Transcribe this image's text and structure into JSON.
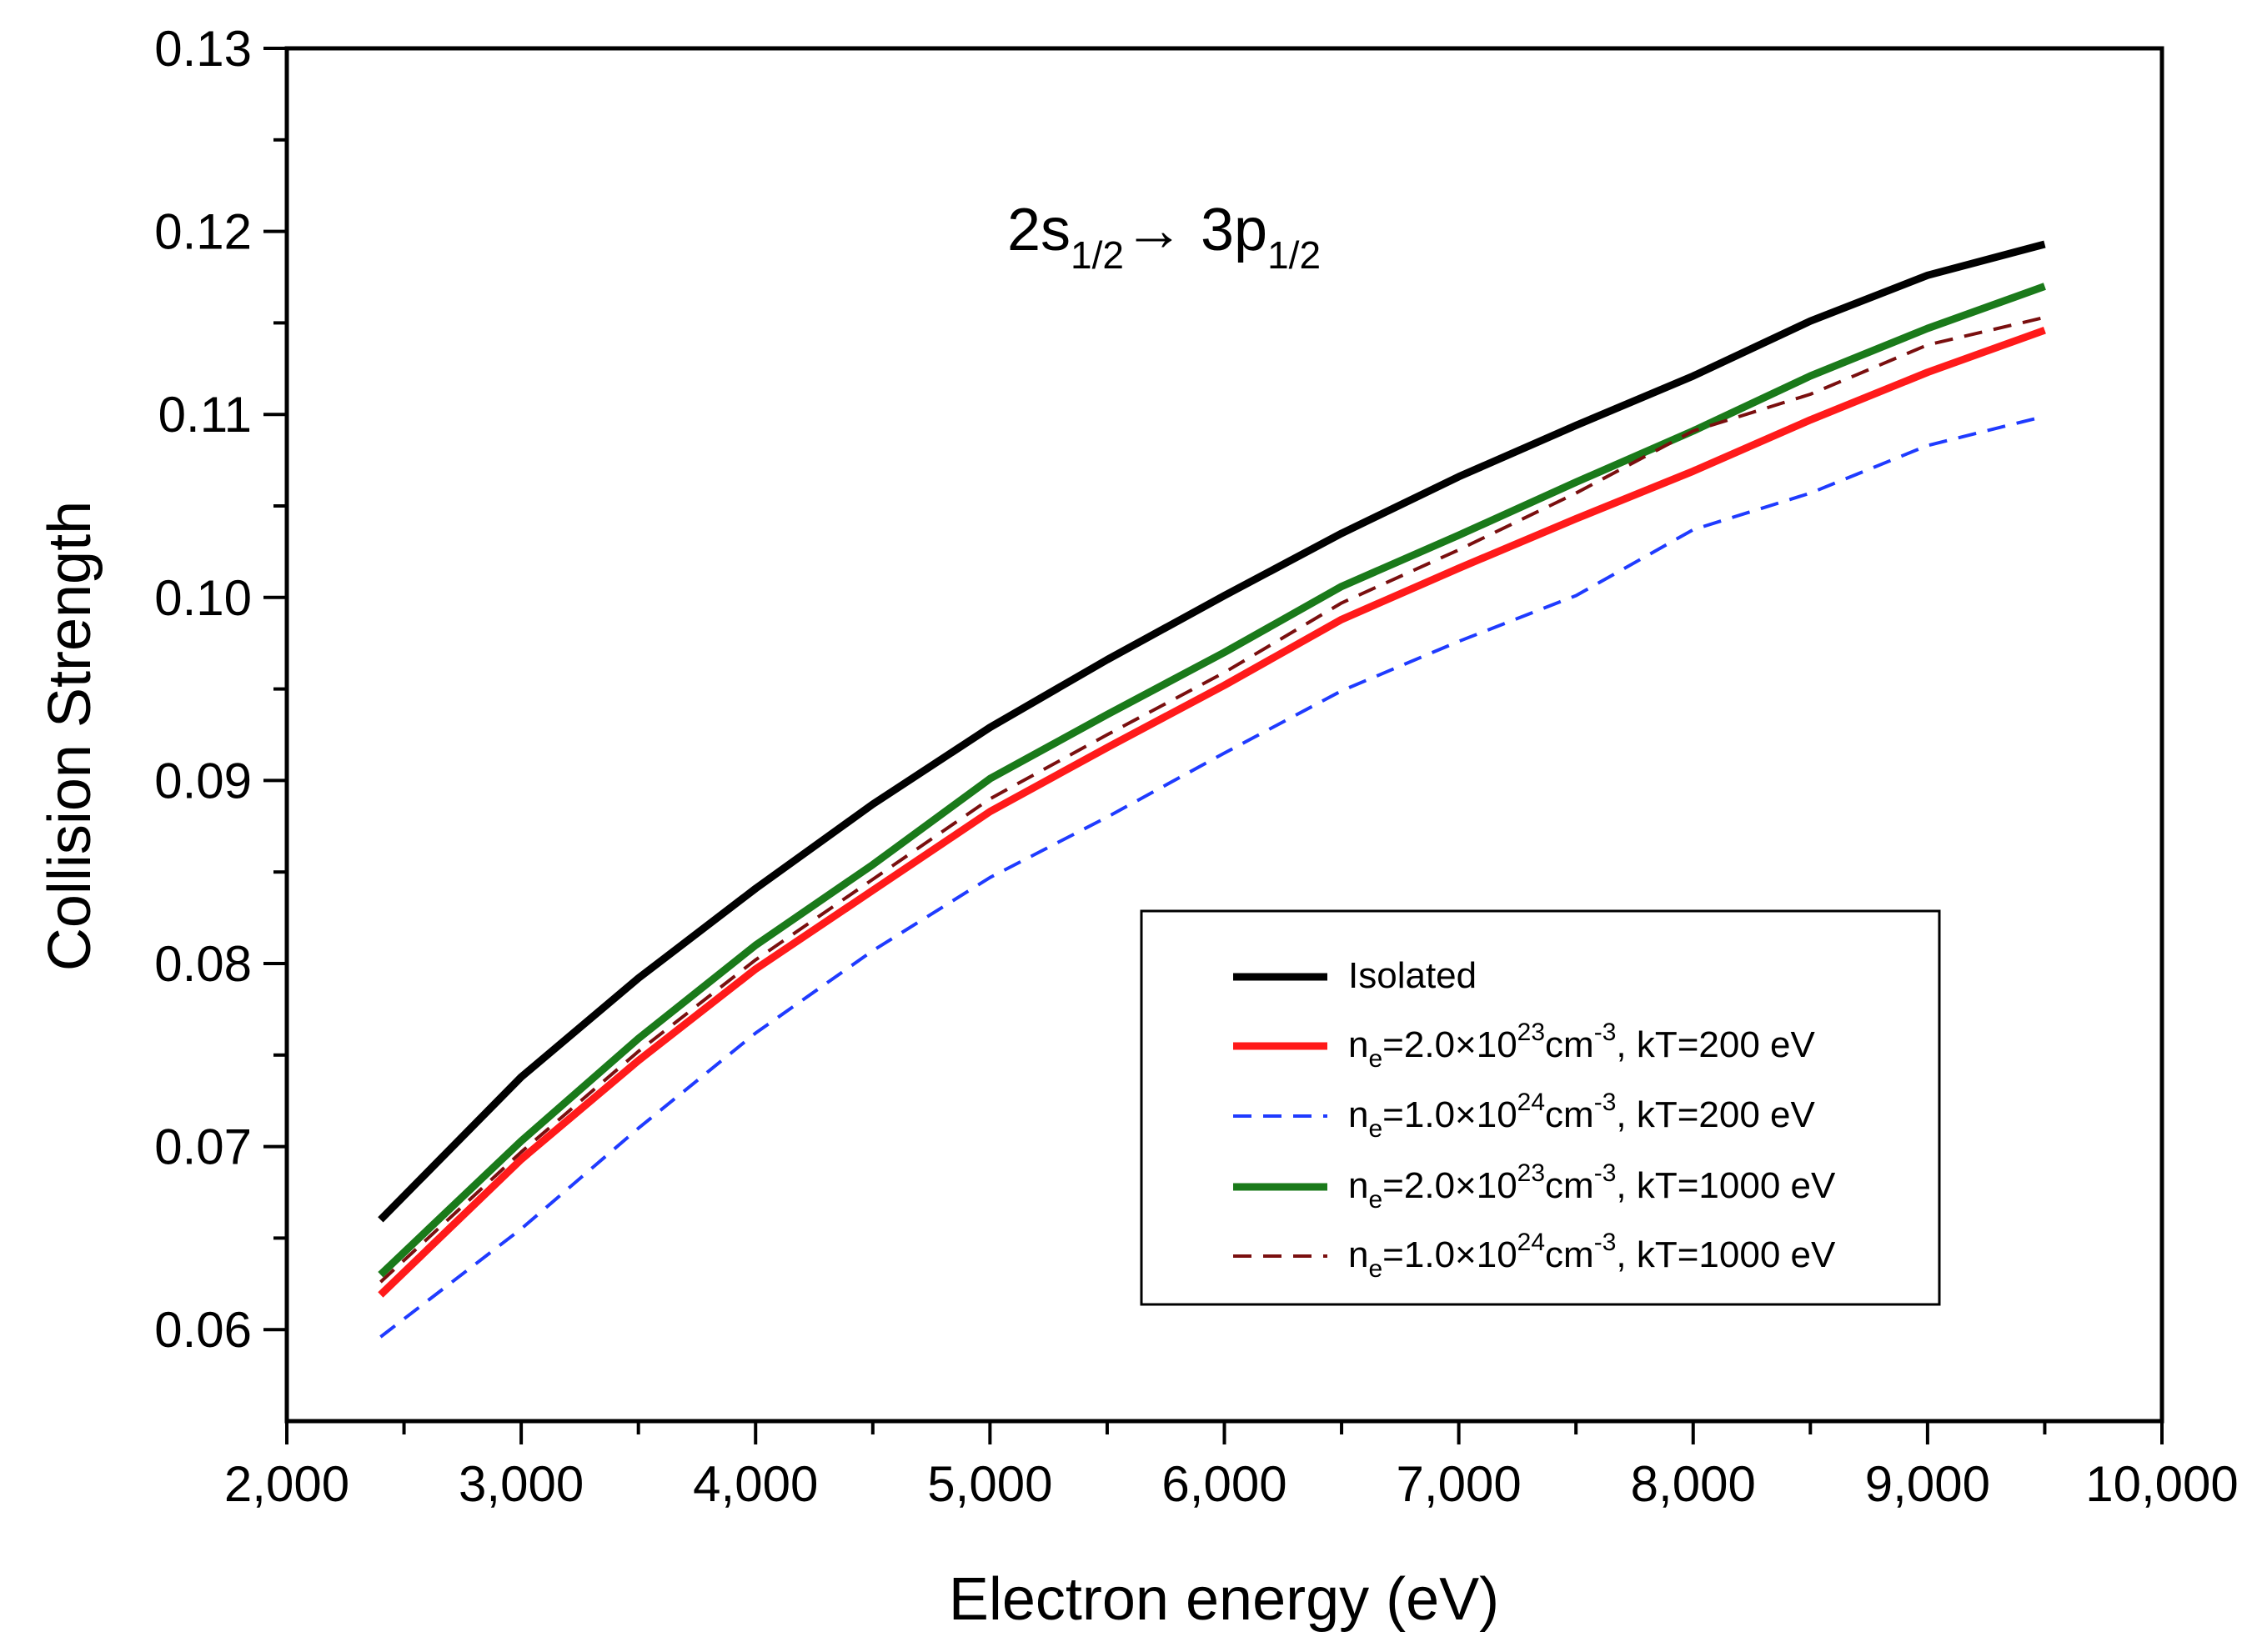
{
  "chart_data": {
    "type": "line",
    "title": "",
    "xlabel": "Electron energy (eV)",
    "ylabel": "Collision Strength",
    "xlim": [
      2000,
      10000
    ],
    "ylim": [
      0.055,
      0.13
    ],
    "x_ticks": [
      2000,
      3000,
      4000,
      5000,
      6000,
      7000,
      8000,
      9000,
      10000
    ],
    "x_tick_labels": [
      "2,000",
      "3,000",
      "4,000",
      "5,000",
      "6,000",
      "7,000",
      "8,000",
      "9,000",
      "10,000"
    ],
    "y_ticks": [
      0.06,
      0.07,
      0.08,
      0.09,
      0.1,
      0.11,
      0.12,
      0.13
    ],
    "y_tick_labels": [
      "0.06",
      "0.07",
      "0.08",
      "0.09",
      "0.10",
      "0.11",
      "0.12",
      "0.13"
    ],
    "grid": false,
    "legend_position": "lower-right",
    "annotation": {
      "part1": "2s",
      "sub1": "1/2",
      "arrow": "→",
      "part2": " 3p",
      "sub2": "1/2"
    },
    "series": [
      {
        "name": "Isolated",
        "label_parts": {
          "main": "Isolated"
        },
        "color": "#000000",
        "style": "solid",
        "x": [
          2400,
          3000,
          3500,
          4000,
          4500,
          5000,
          5500,
          6000,
          6500,
          7000,
          7500,
          8000,
          8500,
          9000,
          9500
        ],
        "y": [
          0.066,
          0.0738,
          0.0792,
          0.0841,
          0.0887,
          0.0929,
          0.0966,
          0.1001,
          0.1035,
          0.1066,
          0.1094,
          0.1121,
          0.1151,
          0.1176,
          0.1193
        ]
      },
      {
        "name": "ne=2.0×1023cm-3, kT=200 eV",
        "label_parts": {
          "n": "n",
          "e": "e",
          "mid": "=2.0×10",
          "exp": "23",
          "unit": "cm",
          "unitexp": "-3",
          "tail": ", kT=200 eV"
        },
        "color": "#ff1a1a",
        "style": "solid",
        "x": [
          2400,
          3000,
          3500,
          4000,
          4500,
          5000,
          5500,
          6000,
          6500,
          7000,
          7500,
          8000,
          8500,
          9000,
          9500
        ],
        "y": [
          0.0619,
          0.0693,
          0.0747,
          0.0797,
          0.084,
          0.0883,
          0.0918,
          0.0952,
          0.0988,
          0.1016,
          0.1043,
          0.1069,
          0.1097,
          0.1123,
          0.1146
        ]
      },
      {
        "name": "ne=1.0×1024cm-3, kT=200 eV",
        "label_parts": {
          "n": "n",
          "e": "e",
          "mid": "=1.0×10",
          "exp": "24",
          "unit": "cm",
          "unitexp": "-3",
          "tail": ", kT=200 eV"
        },
        "color": "#1f3bff",
        "style": "dashed",
        "x": [
          2400,
          3000,
          3500,
          4000,
          4500,
          5000,
          5500,
          6000,
          6500,
          7000,
          7500,
          8000,
          8500,
          9000,
          9500
        ],
        "y": [
          0.0596,
          0.0655,
          0.071,
          0.0762,
          0.0807,
          0.0847,
          0.088,
          0.0915,
          0.0949,
          0.0976,
          0.1001,
          0.1037,
          0.1057,
          0.1083,
          0.1099
        ]
      },
      {
        "name": "ne=2.0×1023cm-3, kT=1000 eV",
        "label_parts": {
          "n": "n",
          "e": "e",
          "mid": "=2.0×10",
          "exp": "23",
          "unit": "cm",
          "unitexp": "-3",
          "tail": ", kT=1000 eV"
        },
        "color": "#1a7a1a",
        "style": "solid",
        "x": [
          2400,
          3000,
          3500,
          4000,
          4500,
          5000,
          5500,
          6000,
          6500,
          7000,
          7500,
          8000,
          8500,
          9000,
          9500
        ],
        "y": [
          0.063,
          0.0703,
          0.0759,
          0.081,
          0.0854,
          0.0901,
          0.0936,
          0.097,
          0.1006,
          0.1034,
          0.1063,
          0.1091,
          0.1121,
          0.1147,
          0.117
        ]
      },
      {
        "name": "ne=1.0×1024cm-3, kT=1000 eV",
        "label_parts": {
          "n": "n",
          "e": "e",
          "mid": "=1.0×10",
          "exp": "24",
          "unit": "cm",
          "unitexp": "-3",
          "tail": ", kT=1000 eV"
        },
        "color": "#7a0f0f",
        "style": "dashed",
        "x": [
          2400,
          3000,
          3500,
          4000,
          4500,
          5000,
          5500,
          6000,
          6500,
          7000,
          7500,
          8000,
          8500,
          9000,
          9500
        ],
        "y": [
          0.0626,
          0.0697,
          0.0752,
          0.0802,
          0.0846,
          0.089,
          0.0925,
          0.0959,
          0.0997,
          0.1026,
          0.1057,
          0.1091,
          0.1111,
          0.1138,
          0.1153
        ]
      }
    ]
  }
}
